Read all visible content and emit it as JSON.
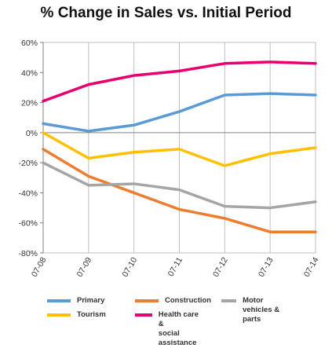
{
  "chart_data": {
    "type": "line",
    "title": "% Change in Sales vs. Initial Period",
    "categories": [
      "07-08",
      "07-09",
      "07-10",
      "07-11",
      "07-12",
      "07-13",
      "07-14"
    ],
    "ylim": [
      -80,
      60
    ],
    "yticks": [
      60,
      40,
      20,
      0,
      -20,
      -40,
      -60,
      -80
    ],
    "ytick_labels": [
      "60%",
      "40%",
      "20%",
      "0%",
      "-20%",
      "-40%",
      "-60%",
      "-80%"
    ],
    "grid": "vertical",
    "legend_position": "bottom",
    "series": [
      {
        "name": "Primary",
        "color": "#5b9bd5",
        "values": [
          6,
          1,
          5,
          14,
          25,
          26,
          25
        ]
      },
      {
        "name": "Tourism",
        "color": "#ffc000",
        "values": [
          0,
          -17,
          -13,
          -11,
          -22,
          -14,
          -10
        ]
      },
      {
        "name": "Construction",
        "color": "#ed7d31",
        "values": [
          -11,
          -29,
          -40,
          -51,
          -57,
          -66,
          -66
        ]
      },
      {
        "name": "Health care & social assistance",
        "color": "#e8006f",
        "values": [
          21,
          32,
          38,
          41,
          46,
          47,
          46
        ]
      },
      {
        "name": "Motor vehicles & parts",
        "color": "#a5a5a5",
        "values": [
          -20,
          -35,
          -34,
          -38,
          -49,
          -50,
          -46
        ]
      }
    ]
  },
  "legend": {
    "primary": "Primary",
    "tourism": "Tourism",
    "construction": "Construction",
    "health": "Health care &\nsocial assistance",
    "motor": "Motor vehicles &\nparts"
  }
}
